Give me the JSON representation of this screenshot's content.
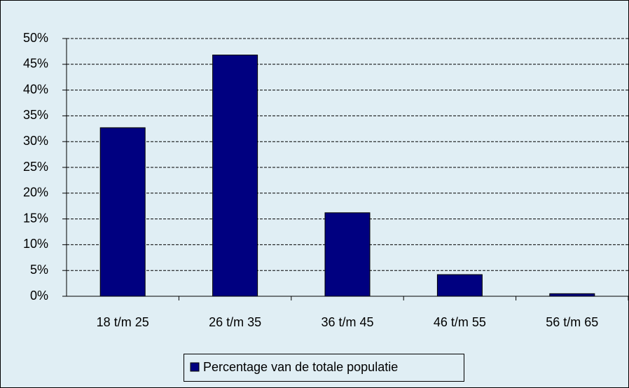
{
  "chart_data": {
    "type": "bar",
    "categories": [
      "18 t/m 25",
      "26 t/m 35",
      "36 t/m 45",
      "46 t/m 55",
      "56 t/m 65"
    ],
    "series": [
      {
        "name": "Percentage van de totale populatie",
        "color": "#000080",
        "values": [
          32.7,
          46.8,
          16.2,
          4.2,
          0.5
        ]
      }
    ],
    "ylim": [
      0,
      50
    ],
    "yticks": [
      {
        "value": 0,
        "label": "0%"
      },
      {
        "value": 5,
        "label": "5%"
      },
      {
        "value": 10,
        "label": "10%"
      },
      {
        "value": 15,
        "label": "15%"
      },
      {
        "value": 20,
        "label": "20%"
      },
      {
        "value": 25,
        "label": "25%"
      },
      {
        "value": 30,
        "label": "30%"
      },
      {
        "value": 35,
        "label": "35%"
      },
      {
        "value": 40,
        "label": "40%"
      },
      {
        "value": 45,
        "label": "45%"
      },
      {
        "value": 50,
        "label": "50%"
      }
    ],
    "grid": true,
    "legend": "bottom"
  }
}
